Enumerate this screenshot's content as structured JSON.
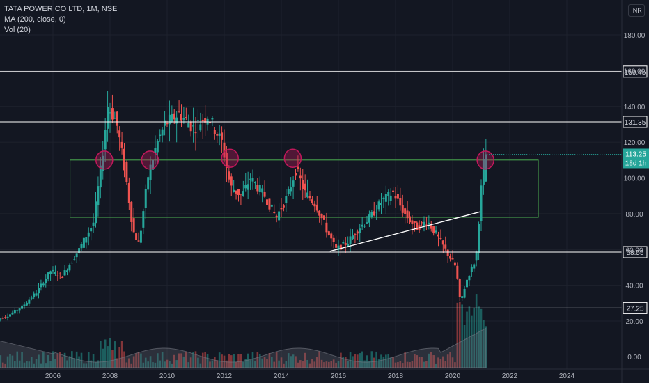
{
  "legend": {
    "title": "TATA POWER CO LTD, 1M, NSE",
    "ma": "MA (200, close, 0)",
    "vol": "Vol (20)"
  },
  "currency": "INR",
  "price_tag": {
    "price": "113.25",
    "countdown": "18d 1h"
  },
  "colors": {
    "background": "#131722",
    "up": "#26a69a",
    "down": "#ef5350",
    "grid": "#1e222d",
    "hline": "#ffffff",
    "box": "#4caf50",
    "circle": "#c2185b",
    "price_tag": "#26a69a",
    "text": "#b2b5be"
  },
  "chart_data": {
    "type": "candlestick",
    "symbol": "TATA POWER CO LTD",
    "interval": "1M",
    "exchange": "NSE",
    "currency": "INR",
    "x_ticks": [
      "2006",
      "2008",
      "2010",
      "2012",
      "2014",
      "2016",
      "2018",
      "2020",
      "2022",
      "2024"
    ],
    "y_ticks": [
      "180.00",
      "160.00",
      "140.00",
      "120.00",
      "100.00",
      "80.00",
      "60.00",
      "40.00",
      "20.00"
    ],
    "volume_axis_ticks": [
      "0.00"
    ],
    "ylim": [
      0,
      190
    ],
    "xlim": [
      2004.0,
      2025.5
    ],
    "last_price": 113.25,
    "horizontal_levels": [
      {
        "price": 159.45,
        "label": "159.45"
      },
      {
        "price": 131.35,
        "label": "131.35"
      },
      {
        "price": 58.55,
        "label": "58.55"
      },
      {
        "price": 27.25,
        "label": "27.25"
      }
    ],
    "range_box": {
      "x_start": 2006.6,
      "x_end": 2023.0,
      "price_top": 110,
      "price_bottom": 78
    },
    "trendline": {
      "start": {
        "x": 2015.7,
        "y": 59
      },
      "end": {
        "x": 2020.95,
        "y": 81
      }
    },
    "circled_peaks": [
      {
        "x": 2007.8,
        "y": 110
      },
      {
        "x": 2009.4,
        "y": 110
      },
      {
        "x": 2012.2,
        "y": 111
      },
      {
        "x": 2014.4,
        "y": 111
      },
      {
        "x": 2021.15,
        "y": 110
      }
    ],
    "price_path": [
      [
        2004.0,
        20
      ],
      [
        2004.5,
        23
      ],
      [
        2005.0,
        28
      ],
      [
        2005.5,
        36
      ],
      [
        2006.0,
        48
      ],
      [
        2006.4,
        45
      ],
      [
        2007.0,
        60
      ],
      [
        2007.5,
        75
      ],
      [
        2007.8,
        110
      ],
      [
        2008.0,
        140
      ],
      [
        2008.3,
        132
      ],
      [
        2008.6,
        105
      ],
      [
        2008.9,
        70
      ],
      [
        2009.1,
        63
      ],
      [
        2009.4,
        100
      ],
      [
        2009.7,
        118
      ],
      [
        2010.0,
        130
      ],
      [
        2010.5,
        136
      ],
      [
        2011.0,
        128
      ],
      [
        2011.5,
        135
      ],
      [
        2012.0,
        120
      ],
      [
        2012.3,
        95
      ],
      [
        2012.7,
        90
      ],
      [
        2013.0,
        100
      ],
      [
        2013.5,
        90
      ],
      [
        2013.9,
        78
      ],
      [
        2014.3,
        90
      ],
      [
        2014.6,
        105
      ],
      [
        2014.9,
        92
      ],
      [
        2015.3,
        85
      ],
      [
        2015.7,
        70
      ],
      [
        2016.0,
        60
      ],
      [
        2016.4,
        64
      ],
      [
        2016.8,
        72
      ],
      [
        2017.2,
        78
      ],
      [
        2017.6,
        87
      ],
      [
        2018.0,
        92
      ],
      [
        2018.4,
        80
      ],
      [
        2018.8,
        72
      ],
      [
        2019.2,
        76
      ],
      [
        2019.6,
        66
      ],
      [
        2019.9,
        58
      ],
      [
        2020.2,
        50
      ],
      [
        2020.35,
        30
      ],
      [
        2020.6,
        44
      ],
      [
        2020.9,
        55
      ],
      [
        2021.0,
        76
      ],
      [
        2021.1,
        98
      ],
      [
        2021.2,
        113.25
      ]
    ],
    "volume_note": "volume histogram with 20-period MA shaded area; spikes near 2020-2021"
  }
}
